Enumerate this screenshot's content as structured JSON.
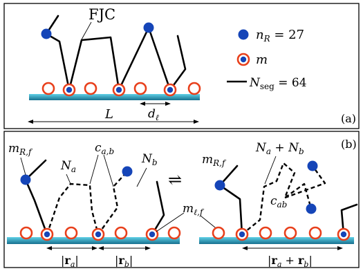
{
  "panel_a": {
    "label": "(a)",
    "fjc_label": "FJC",
    "legend": {
      "bead_label": "n_R = 27",
      "anchor_label": "m",
      "segment_label": "N_seg = 64"
    },
    "length_label": "L",
    "spacing_label": "d_ℓ"
  },
  "panel_b": {
    "label": "(b)",
    "left": {
      "m_rf_label": "m_{R,f}",
      "n_a_label": "N_a",
      "c_ab_label": "c_{a,b}",
      "n_b_label": "N_b",
      "ra_label": "|r_a|",
      "rb_label": "|r_b|"
    },
    "equilibrium_symbol": "⇌",
    "m_lf_label": "m_{ℓ,f}",
    "right": {
      "m_rf_label": "m_{R,f}",
      "n_sum_label": "N_a + N_b",
      "c_ab_label": "c_{ab}",
      "r_sum_label": "|r_a + r_b|"
    }
  },
  "colors": {
    "chain_bead": "#1545b8",
    "anchor_ring": "#e8401c",
    "surface": "#2aa7c6"
  }
}
